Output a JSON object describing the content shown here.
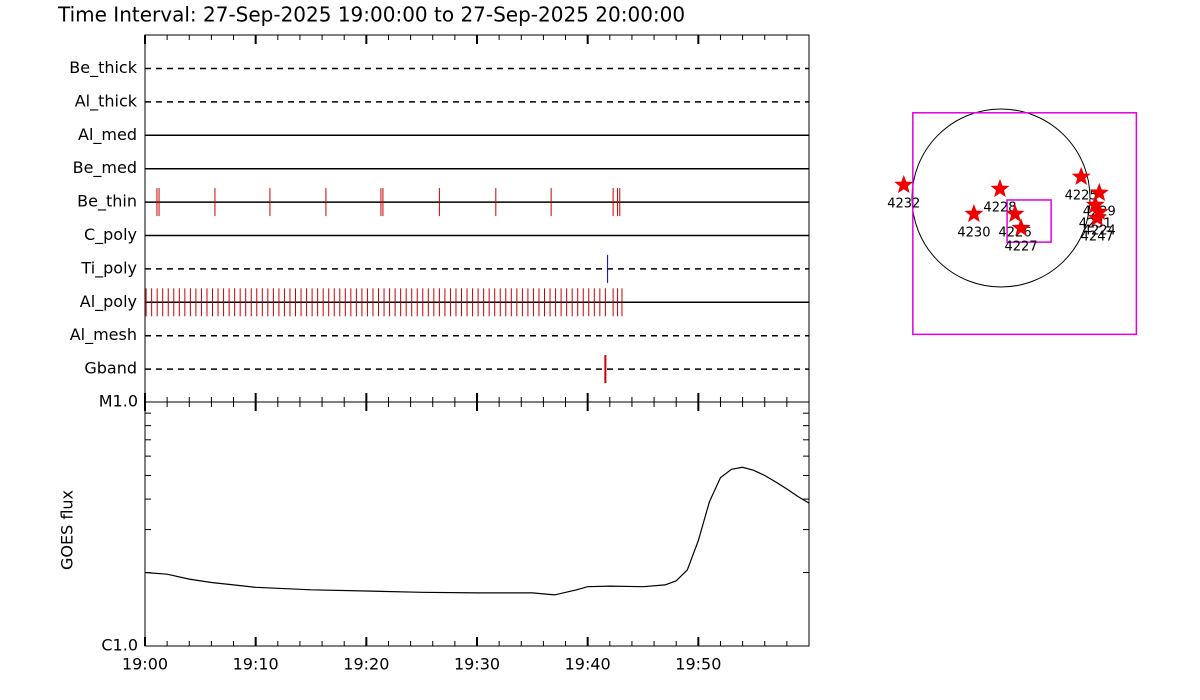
{
  "chart_data": [
    {
      "type": "event-timeline",
      "title": "Time Interval: 27-Sep-2025 19:00:00 to 27-Sep-2025 20:00:00",
      "xlim": [
        0,
        60
      ],
      "xticks": [
        {
          "value": 0,
          "label": "19:00"
        },
        {
          "value": 10,
          "label": "19:10"
        },
        {
          "value": 20,
          "label": "19:20"
        },
        {
          "value": 30,
          "label": "19:30"
        },
        {
          "value": 40,
          "label": "19:40"
        },
        {
          "value": 50,
          "label": "19:50"
        }
      ],
      "minor_xticks": [
        2,
        4,
        6,
        8,
        12,
        14,
        16,
        18,
        22,
        24,
        26,
        28,
        32,
        34,
        36,
        38,
        42,
        44,
        46,
        48,
        52,
        54,
        56,
        58
      ],
      "rows": [
        {
          "name": "Be_thick",
          "style": "dashed",
          "color": "#cc0000",
          "events": []
        },
        {
          "name": "Al_thick",
          "style": "dashed",
          "color": "#cc0000",
          "events": []
        },
        {
          "name": "Al_med",
          "style": "solid",
          "color": "#cc0000",
          "events": []
        },
        {
          "name": "Be_med",
          "style": "solid",
          "color": "#cc0000",
          "events": []
        },
        {
          "name": "Be_thin",
          "style": "solid",
          "color": "#cc0000",
          "events": [
            1.08,
            1.27,
            6.32,
            11.29,
            16.35,
            21.32,
            21.5,
            26.6,
            31.7,
            36.7,
            42.3,
            42.7,
            42.9
          ]
        },
        {
          "name": "C_poly",
          "style": "solid",
          "color": "#cc0000",
          "events": []
        },
        {
          "name": "Ti_poly",
          "style": "dashed",
          "color": "#0000cc",
          "events": [
            41.8
          ]
        },
        {
          "name": "Al_poly",
          "style": "solid",
          "color": "#cc0000",
          "events": [
            0.1,
            0.6,
            1.1,
            1.6,
            2.1,
            2.6,
            3.1,
            3.6,
            4.1,
            4.6,
            5.1,
            5.6,
            6.1,
            6.6,
            7.1,
            7.6,
            8.1,
            8.6,
            9.1,
            9.6,
            10.1,
            10.6,
            11.1,
            11.6,
            12.1,
            12.6,
            13.1,
            13.6,
            14.1,
            14.6,
            15.1,
            15.6,
            16.1,
            16.6,
            17.1,
            17.6,
            18.1,
            18.6,
            19.1,
            19.6,
            20.1,
            20.6,
            21.1,
            21.6,
            22.1,
            22.6,
            23.1,
            23.6,
            24.1,
            24.6,
            25.1,
            25.6,
            26.1,
            26.6,
            27.1,
            27.6,
            28.1,
            28.6,
            29.1,
            29.6,
            30.1,
            30.6,
            31.1,
            31.6,
            32.1,
            32.6,
            33.1,
            33.6,
            34.1,
            34.6,
            35.1,
            35.6,
            36.1,
            36.6,
            37.1,
            37.6,
            38.1,
            38.6,
            39.1,
            39.6,
            40.1,
            40.6,
            41.1,
            41.6,
            42.3,
            42.7,
            43.1
          ]
        },
        {
          "name": "Al_mesh",
          "style": "dashed",
          "color": "#cc0000",
          "events": []
        },
        {
          "name": "Gband",
          "style": "dashed",
          "color": "#cc0000",
          "events": [
            41.6
          ]
        }
      ]
    },
    {
      "type": "line",
      "y_label": "GOES flux",
      "log_scale": true,
      "xlim": [
        0,
        60
      ],
      "ylim": [
        1e-06,
        1e-05
      ],
      "yticks": [
        {
          "value": 1e-06,
          "label": "C1.0"
        },
        {
          "value": 1e-05,
          "label": "M1.0"
        }
      ],
      "minor_yticks": [
        2e-06,
        3e-06,
        4e-06,
        5e-06,
        6e-06,
        7e-06,
        8e-06,
        9e-06
      ],
      "color": "#000000",
      "x": [
        0,
        2,
        4,
        6,
        8,
        10,
        15,
        20,
        25,
        30,
        35,
        37,
        39,
        40,
        42,
        45,
        47,
        48,
        49,
        50,
        51,
        52,
        53,
        54,
        55,
        56,
        57,
        58,
        59,
        60
      ],
      "values": [
        2e-06,
        1.97e-06,
        1.88e-06,
        1.82e-06,
        1.78e-06,
        1.74e-06,
        1.7e-06,
        1.68e-06,
        1.66e-06,
        1.65e-06,
        1.65e-06,
        1.62e-06,
        1.7e-06,
        1.75e-06,
        1.76e-06,
        1.75e-06,
        1.78e-06,
        1.85e-06,
        2.05e-06,
        2.7e-06,
        3.9e-06,
        4.9e-06,
        5.3e-06,
        5.4e-06,
        5.25e-06,
        5e-06,
        4.7e-06,
        4.4e-06,
        4.1e-06,
        3.85e-06
      ]
    },
    {
      "type": "sun-map",
      "fov_color": "#e000e0",
      "star_color": "#ee0000",
      "fov": [
        {
          "x": 252,
          "y": -273,
          "w": 2386,
          "h": 2365
        },
        {
          "x": 300,
          "y": -246,
          "w": 470,
          "h": 450
        }
      ],
      "regions": [
        {
          "label": "4232",
          "x": -1038,
          "y": 139
        },
        {
          "label": "4228",
          "x": -11,
          "y": 96
        },
        {
          "label": "4230",
          "x": -289,
          "y": -171
        },
        {
          "label": "4226",
          "x": 150,
          "y": -171
        },
        {
          "label": "4227",
          "x": 214,
          "y": -321
        },
        {
          "label": "4225",
          "x": 856,
          "y": 225
        },
        {
          "label": "4229",
          "x": 1049,
          "y": 54
        },
        {
          "label": "4231",
          "x": 1006,
          "y": -75
        },
        {
          "label": "4224",
          "x": 1049,
          "y": -150
        },
        {
          "label": "4247",
          "x": 1027,
          "y": -214
        }
      ]
    }
  ]
}
